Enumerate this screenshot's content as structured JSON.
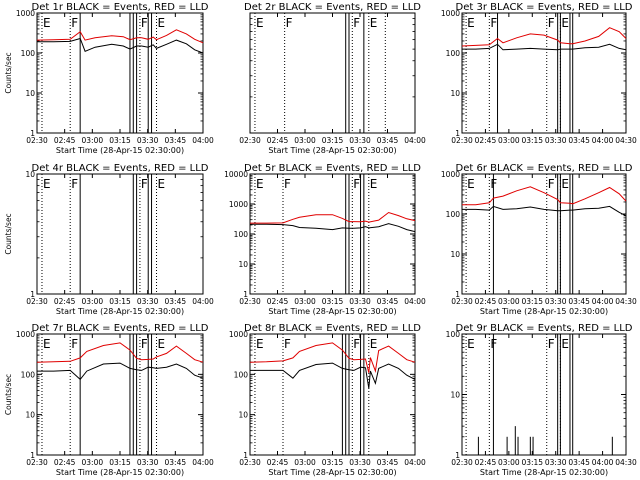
{
  "chart_data": [
    {
      "type": "line",
      "title": "Det 1r BLACK = Events, RED = LLD",
      "ylabel": "Counts/sec",
      "xlabel": "Start Time (28-Apr-15 02:30:00)",
      "xticks": [
        "02:30",
        "02:45",
        "03:00",
        "03:15",
        "03:30",
        "03:45",
        "04:00"
      ],
      "xlim_min": [
        0,
        100
      ],
      "yscale": "log",
      "ylim": [
        1,
        1000
      ],
      "yticks": [
        "1",
        "10",
        "100",
        "1000"
      ],
      "flags": [
        {
          "t": 3,
          "label": "E",
          "style": "dotted"
        },
        {
          "t": 20,
          "label": "F",
          "style": "dotted"
        },
        {
          "t": 62,
          "label": "F",
          "style": "dotted"
        },
        {
          "t": 72,
          "label": "E",
          "style": "dotted"
        }
      ],
      "solid_lines": [
        26,
        56,
        58,
        60,
        67,
        69
      ],
      "series": [
        {
          "name": "Events",
          "color": "#000000",
          "t": [
            0,
            10,
            20,
            26,
            29,
            35,
            45,
            52,
            56,
            60,
            63,
            67,
            70,
            72,
            78,
            84,
            90,
            95,
            100
          ],
          "values": [
            190,
            190,
            195,
            230,
            110,
            140,
            165,
            150,
            125,
            150,
            150,
            140,
            160,
            130,
            165,
            210,
            170,
            120,
            100
          ]
        },
        {
          "name": "LLD",
          "color": "#e00000",
          "t": [
            0,
            10,
            20,
            26,
            29,
            35,
            45,
            52,
            56,
            60,
            63,
            67,
            70,
            72,
            78,
            84,
            90,
            95,
            100
          ],
          "values": [
            210,
            215,
            220,
            340,
            210,
            240,
            270,
            255,
            215,
            240,
            240,
            220,
            250,
            215,
            275,
            380,
            300,
            220,
            180
          ]
        }
      ]
    },
    {
      "type": "line",
      "title": "Det 2r BLACK = Events, RED = LLD",
      "ylabel": "",
      "xlabel": "Start Time (28-Apr-15 02:30:00)",
      "xticks": [
        "02:30",
        "02:45",
        "03:00",
        "03:15",
        "03:30",
        "03:45",
        "04:00"
      ],
      "xlim_min": [
        0,
        100
      ],
      "yscale": "log",
      "ylim": [
        1,
        10
      ],
      "yticks": [],
      "flags": [
        {
          "t": 3,
          "label": "E",
          "style": "dotted"
        },
        {
          "t": 21,
          "label": "F",
          "style": "dotted"
        },
        {
          "t": 62,
          "label": "F",
          "style": "dotted"
        },
        {
          "t": 72,
          "label": "E",
          "style": "dotted"
        },
        {
          "t": 82,
          "label": "",
          "style": "dotted"
        }
      ],
      "solid_lines": [
        58,
        60,
        69
      ],
      "series": []
    },
    {
      "type": "line",
      "title": "Det 3r BLACK = Events, RED = LLD",
      "ylabel": "",
      "xlabel": "",
      "xticks": [
        "02:30",
        "02:45",
        "03:00",
        "03:15",
        "03:30",
        "03:45",
        "04:00",
        "04:30"
      ],
      "xlim_min": [
        0,
        120
      ],
      "yscale": "log",
      "ylim": [
        1,
        1000
      ],
      "yticks": [
        "1",
        "10",
        "100",
        "1000"
      ],
      "flags": [
        {
          "t": 3,
          "label": "E",
          "style": "dotted"
        },
        {
          "t": 20,
          "label": "F",
          "style": "dotted"
        },
        {
          "t": 62,
          "label": "F",
          "style": "dotted"
        },
        {
          "t": 72,
          "label": "E",
          "style": "dotted"
        }
      ],
      "solid_lines": [
        26,
        70,
        72,
        79,
        81
      ],
      "series": [
        {
          "name": "Events",
          "color": "#000000",
          "t": [
            0,
            10,
            20,
            26,
            30,
            40,
            50,
            60,
            70,
            72,
            79,
            81,
            90,
            100,
            108,
            115,
            120
          ],
          "values": [
            125,
            125,
            130,
            165,
            120,
            125,
            130,
            125,
            120,
            125,
            125,
            125,
            135,
            140,
            165,
            130,
            120
          ]
        },
        {
          "name": "LLD",
          "color": "#e00000",
          "t": [
            0,
            10,
            20,
            26,
            30,
            40,
            50,
            60,
            70,
            72,
            79,
            81,
            90,
            100,
            108,
            115,
            120
          ],
          "values": [
            150,
            155,
            160,
            230,
            180,
            240,
            300,
            280,
            210,
            180,
            170,
            170,
            200,
            260,
            430,
            340,
            230
          ]
        }
      ]
    },
    {
      "type": "line",
      "title": "Det 4r BLACK = Events, RED = LLD",
      "ylabel": "Counts/sec",
      "xlabel": "Start Time (28-Apr-15 02:30:00)",
      "xticks": [
        "02:30",
        "02:45",
        "03:00",
        "03:15",
        "03:30",
        "03:45",
        "04:00"
      ],
      "xlim_min": [
        0,
        100
      ],
      "yscale": "log",
      "ylim": [
        1,
        10
      ],
      "yticks": [
        "1",
        "10"
      ],
      "flags": [
        {
          "t": 3,
          "label": "E",
          "style": "dotted"
        },
        {
          "t": 20,
          "label": "F",
          "style": "dotted"
        },
        {
          "t": 62,
          "label": "F",
          "style": "dotted"
        },
        {
          "t": 72,
          "label": "E",
          "style": "dotted"
        }
      ],
      "solid_lines": [
        26,
        58,
        60,
        67,
        69
      ],
      "series": []
    },
    {
      "type": "line",
      "title": "Det 5r BLACK = Events, RED = LLD",
      "ylabel": "",
      "xlabel": "Start Time (28-Apr-15 02:30:00)",
      "xticks": [
        "02:30",
        "02:45",
        "03:00",
        "03:15",
        "03:30",
        "03:45",
        "04:00"
      ],
      "xlim_min": [
        0,
        100
      ],
      "yscale": "log",
      "ylim": [
        1,
        10000
      ],
      "yticks": [
        "1",
        "10",
        "100",
        "1000",
        "10000"
      ],
      "flags": [
        {
          "t": 3,
          "label": "E",
          "style": "dotted"
        },
        {
          "t": 20,
          "label": "F",
          "style": "dotted"
        },
        {
          "t": 62,
          "label": "F",
          "style": "dotted"
        },
        {
          "t": 72,
          "label": "E",
          "style": "dotted"
        }
      ],
      "solid_lines": [
        58,
        60,
        67,
        69
      ],
      "series": [
        {
          "name": "Events",
          "color": "#000000",
          "t": [
            0,
            10,
            20,
            26,
            30,
            40,
            50,
            56,
            60,
            63,
            67,
            70,
            72,
            78,
            84,
            90,
            95,
            100
          ],
          "values": [
            210,
            210,
            205,
            190,
            165,
            155,
            140,
            160,
            155,
            155,
            160,
            175,
            160,
            175,
            220,
            180,
            140,
            120
          ]
        },
        {
          "name": "LLD",
          "color": "#e00000",
          "t": [
            0,
            10,
            20,
            26,
            30,
            40,
            50,
            56,
            60,
            63,
            67,
            70,
            72,
            78,
            84,
            90,
            95,
            100
          ],
          "values": [
            230,
            230,
            235,
            310,
            360,
            440,
            440,
            330,
            260,
            260,
            255,
            270,
            250,
            290,
            520,
            410,
            320,
            280
          ]
        }
      ]
    },
    {
      "type": "line",
      "title": "Det 6r BLACK = Events, RED = LLD",
      "ylabel": "",
      "xlabel": "Start Time (28-Apr-15 02:30:00)",
      "xticks": [
        "02:30",
        "02:45",
        "03:00",
        "03:15",
        "03:30",
        "03:45",
        "04:00",
        "04:30"
      ],
      "xlim_min": [
        0,
        120
      ],
      "yscale": "log",
      "ylim": [
        1,
        1000
      ],
      "yticks": [
        "1",
        "10",
        "100",
        "1000"
      ],
      "flags": [
        {
          "t": 3,
          "label": "E",
          "style": "dotted"
        },
        {
          "t": 20,
          "label": "F",
          "style": "dotted"
        },
        {
          "t": 62,
          "label": "F",
          "style": "dotted"
        },
        {
          "t": 72,
          "label": "E",
          "style": "dotted"
        }
      ],
      "solid_lines": [
        23,
        70,
        72,
        79,
        81
      ],
      "series": [
        {
          "name": "Events",
          "color": "#000000",
          "t": [
            0,
            10,
            20,
            23,
            30,
            40,
            50,
            60,
            70,
            72,
            79,
            81,
            90,
            100,
            108,
            115,
            120
          ],
          "values": [
            130,
            130,
            125,
            155,
            130,
            135,
            150,
            130,
            120,
            120,
            125,
            125,
            135,
            140,
            155,
            110,
            90
          ]
        },
        {
          "name": "LLD",
          "color": "#e00000",
          "t": [
            0,
            10,
            20,
            23,
            30,
            40,
            50,
            60,
            70,
            72,
            79,
            81,
            90,
            100,
            108,
            115,
            120
          ],
          "values": [
            170,
            170,
            190,
            250,
            280,
            380,
            480,
            340,
            230,
            190,
            185,
            180,
            240,
            340,
            460,
            320,
            210
          ]
        }
      ]
    },
    {
      "type": "line",
      "title": "Det 7r BLACK = Events, RED = LLD",
      "ylabel": "Counts/sec",
      "xlabel": "Start Time (28-Apr-15 02:30:00)",
      "xticks": [
        "02:30",
        "02:45",
        "03:00",
        "03:15",
        "03:30",
        "03:45",
        "04:00"
      ],
      "xlim_min": [
        0,
        100
      ],
      "yscale": "log",
      "ylim": [
        1,
        1000
      ],
      "yticks": [
        "1",
        "10",
        "100",
        "1000"
      ],
      "flags": [
        {
          "t": 3,
          "label": "E",
          "style": "dotted"
        },
        {
          "t": 20,
          "label": "F",
          "style": "dotted"
        },
        {
          "t": 62,
          "label": "F",
          "style": "dotted"
        },
        {
          "t": 72,
          "label": "E",
          "style": "dotted"
        }
      ],
      "solid_lines": [
        26,
        56,
        58,
        60,
        67,
        69
      ],
      "series": [
        {
          "name": "Events",
          "color": "#000000",
          "t": [
            0,
            10,
            20,
            26,
            30,
            40,
            50,
            56,
            60,
            63,
            67,
            70,
            72,
            78,
            84,
            90,
            95,
            100
          ],
          "values": [
            120,
            120,
            125,
            75,
            120,
            180,
            190,
            140,
            130,
            125,
            150,
            145,
            140,
            150,
            180,
            140,
            95,
            80
          ]
        },
        {
          "name": "LLD",
          "color": "#e00000",
          "t": [
            0,
            10,
            20,
            26,
            30,
            40,
            50,
            56,
            60,
            63,
            67,
            70,
            72,
            78,
            84,
            90,
            95,
            100
          ],
          "values": [
            200,
            205,
            210,
            255,
            370,
            520,
            600,
            400,
            250,
            230,
            235,
            240,
            270,
            330,
            500,
            330,
            230,
            200
          ]
        }
      ]
    },
    {
      "type": "line",
      "title": "Det 8r BLACK = Events, RED = LLD",
      "ylabel": "",
      "xlabel": "Start Time (28-Apr-15 02:30:00)",
      "xticks": [
        "02:30",
        "02:45",
        "03:00",
        "03:15",
        "03:30",
        "03:45",
        "04:00"
      ],
      "xlim_min": [
        0,
        100
      ],
      "yscale": "log",
      "ylim": [
        1,
        1000
      ],
      "yticks": [
        "1",
        "10",
        "100",
        "1000"
      ],
      "flags": [
        {
          "t": 3,
          "label": "E",
          "style": "dotted"
        },
        {
          "t": 20,
          "label": "F",
          "style": "dotted"
        },
        {
          "t": 62,
          "label": "F",
          "style": "dotted"
        },
        {
          "t": 72,
          "label": "E",
          "style": "dotted"
        }
      ],
      "solid_lines": [
        56,
        58,
        60,
        67,
        69
      ],
      "series": [
        {
          "name": "Events",
          "color": "#000000",
          "t": [
            0,
            10,
            20,
            26,
            30,
            40,
            50,
            56,
            60,
            63,
            67,
            70,
            72,
            73,
            76,
            78,
            84,
            90,
            95,
            100
          ],
          "values": [
            125,
            125,
            125,
            80,
            125,
            175,
            190,
            140,
            130,
            125,
            150,
            145,
            45,
            120,
            60,
            140,
            180,
            140,
            95,
            75
          ]
        },
        {
          "name": "LLD",
          "color": "#e00000",
          "t": [
            0,
            10,
            20,
            26,
            30,
            40,
            50,
            56,
            60,
            63,
            67,
            70,
            72,
            73,
            76,
            78,
            84,
            90,
            95,
            100
          ],
          "values": [
            200,
            205,
            215,
            255,
            370,
            520,
            600,
            400,
            250,
            230,
            235,
            240,
            110,
            260,
            120,
            390,
            500,
            330,
            230,
            200
          ]
        }
      ]
    },
    {
      "type": "line",
      "title": "Det 9r BLACK = Events, RED = LLD",
      "ylabel": "",
      "xlabel": "Start Time (28-Apr-15 02:30:00)",
      "xticks": [
        "02:30",
        "02:45",
        "03:00",
        "03:15",
        "03:30",
        "03:45",
        "04:00",
        "04:30"
      ],
      "xlim_min": [
        0,
        120
      ],
      "yscale": "log",
      "ylim": [
        1,
        100
      ],
      "yticks": [
        "1",
        "10",
        "100"
      ],
      "flags": [
        {
          "t": 3,
          "label": "E",
          "style": "dotted"
        },
        {
          "t": 20,
          "label": "F",
          "style": "dotted"
        },
        {
          "t": 62,
          "label": "F",
          "style": "dotted"
        },
        {
          "t": 72,
          "label": "E",
          "style": "dotted"
        }
      ],
      "solid_lines": [
        23,
        70,
        72,
        79,
        81
      ],
      "series": [],
      "spikes": [
        {
          "t": 12,
          "v": 2
        },
        {
          "t": 33,
          "v": 2
        },
        {
          "t": 39,
          "v": 3
        },
        {
          "t": 41,
          "v": 2
        },
        {
          "t": 50,
          "v": 2
        },
        {
          "t": 52,
          "v": 2
        },
        {
          "t": 110,
          "v": 2
        }
      ]
    }
  ]
}
